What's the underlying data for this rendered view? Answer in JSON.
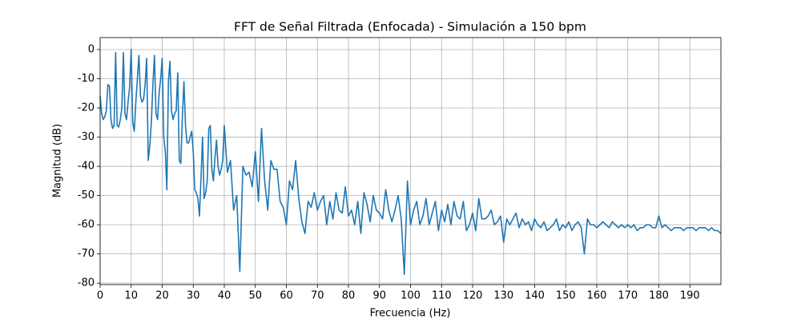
{
  "chart_data": {
    "type": "line",
    "title": "FFT de Señal Filtrada (Enfocada) - Simulación a 150 bpm",
    "xlabel": "Frecuencia (Hz)",
    "ylabel": "Magnitud (dB)",
    "color": "#1f77b4",
    "grid": true,
    "xlim": [
      0,
      200
    ],
    "ylim": [
      -80.5,
      4.1
    ],
    "xticks": [
      0,
      10,
      20,
      30,
      40,
      50,
      60,
      70,
      80,
      90,
      100,
      110,
      120,
      130,
      140,
      150,
      160,
      170,
      180,
      190
    ],
    "yticks": [
      0,
      -10,
      -20,
      -30,
      -40,
      -50,
      -60,
      -70,
      -80
    ],
    "x": [
      0,
      0.5,
      1,
      1.5,
      2,
      2.5,
      3,
      3.5,
      4,
      4.5,
      5,
      5.5,
      6,
      6.5,
      7,
      7.5,
      8,
      8.5,
      9,
      9.5,
      10,
      10.5,
      11,
      11.5,
      12,
      12.5,
      13,
      13.5,
      14,
      14.5,
      15,
      15.5,
      16,
      16.5,
      17,
      17.5,
      18,
      18.5,
      19,
      19.5,
      20,
      20.5,
      21,
      21.5,
      22,
      22.5,
      23,
      23.5,
      24,
      24.5,
      25,
      25.5,
      26,
      26.5,
      27,
      27.5,
      28,
      28.5,
      29,
      29.5,
      30,
      30.5,
      31,
      31.5,
      32,
      32.5,
      33,
      33.5,
      34,
      34.5,
      35,
      35.5,
      36,
      36.5,
      37,
      37.5,
      38,
      38.5,
      39,
      39.5,
      40,
      41,
      42,
      43,
      44,
      45,
      46,
      47,
      48,
      49,
      50,
      51,
      52,
      53,
      54,
      55,
      56,
      57,
      58,
      59,
      60,
      61,
      62,
      63,
      64,
      65,
      66,
      67,
      68,
      69,
      70,
      71,
      72,
      73,
      74,
      75,
      76,
      77,
      78,
      79,
      80,
      81,
      82,
      83,
      84,
      85,
      86,
      87,
      88,
      89,
      90,
      91,
      92,
      93,
      94,
      95,
      96,
      97,
      98,
      99,
      100,
      101,
      102,
      103,
      104,
      105,
      106,
      107,
      108,
      109,
      110,
      111,
      112,
      113,
      114,
      115,
      116,
      117,
      118,
      119,
      120,
      121,
      122,
      123,
      124,
      125,
      126,
      127,
      128,
      129,
      130,
      131,
      132,
      133,
      134,
      135,
      136,
      137,
      138,
      139,
      140,
      141,
      142,
      143,
      144,
      145,
      146,
      147,
      148,
      149,
      150,
      151,
      152,
      153,
      154,
      155,
      156,
      157,
      158,
      159,
      160,
      161,
      162,
      163,
      164,
      165,
      166,
      167,
      168,
      169,
      170,
      171,
      172,
      173,
      174,
      175,
      176,
      177,
      178,
      179,
      180,
      181,
      182,
      183,
      184,
      185,
      186,
      187,
      188,
      189,
      190,
      191,
      192,
      193,
      194,
      195,
      196,
      197,
      198,
      199,
      200
    ],
    "values": [
      -16,
      -22,
      -24,
      -23,
      -21,
      -12,
      -12.5,
      -24,
      -27,
      -26,
      -1,
      -26,
      -26.5,
      -24,
      -20,
      -1,
      -22,
      -24,
      -18,
      -13,
      0,
      -25,
      -28,
      -18,
      -10,
      -2,
      -16,
      -18,
      -17,
      -12,
      -3,
      -38,
      -33,
      -25,
      -12,
      -2,
      -22,
      -24,
      -15,
      -10,
      -3,
      -30,
      -35,
      -48,
      -11,
      -4,
      -21,
      -24,
      -22,
      -21,
      -8,
      -38,
      -39,
      -23,
      -11,
      -26,
      -32,
      -32,
      -30,
      -28,
      -35,
      -48,
      -49,
      -51,
      -57,
      -44,
      -30,
      -51,
      -49,
      -45,
      -27,
      -26,
      -41,
      -45,
      -37,
      -31,
      -40,
      -43,
      -41,
      -38,
      -26,
      -42,
      -38,
      -55,
      -50,
      -76,
      -40,
      -43,
      -42,
      -47,
      -35,
      -52,
      -27,
      -45,
      -55,
      -38,
      -41,
      -41,
      -52,
      -54,
      -60,
      -45,
      -48,
      -38,
      -51,
      -59,
      -63,
      -52,
      -54,
      -49,
      -55,
      -52,
      -50,
      -60,
      -52,
      -58,
      -49,
      -55,
      -56,
      -47,
      -57,
      -55,
      -60,
      -52,
      -63,
      -49,
      -53,
      -59,
      -50,
      -55,
      -56,
      -58,
      -48,
      -55,
      -59,
      -55,
      -50,
      -58,
      -77,
      -45,
      -60,
      -55,
      -52,
      -60,
      -57,
      -51,
      -60,
      -56,
      -52,
      -62,
      -55,
      -59,
      -53,
      -60,
      -52,
      -57,
      -58,
      -52,
      -62,
      -60,
      -56,
      -62,
      -51,
      -58,
      -58,
      -57,
      -55,
      -60,
      -59,
      -57,
      -66,
      -58,
      -60,
      -58,
      -56,
      -61,
      -58,
      -60,
      -59,
      -62,
      -58,
      -60,
      -61,
      -59,
      -62,
      -61,
      -60,
      -58,
      -62,
      -60,
      -61,
      -59,
      -62,
      -60,
      -59,
      -61,
      -70,
      -58,
      -60,
      -60,
      -61,
      -60,
      -59,
      -60,
      -61,
      -59,
      -60,
      -61,
      -60,
      -61,
      -60,
      -61,
      -60,
      -62,
      -61,
      -61,
      -60,
      -60,
      -61,
      -61,
      -57,
      -61,
      -60,
      -61,
      -62,
      -61,
      -61,
      -61,
      -62,
      -61,
      -61,
      -61,
      -62,
      -61,
      -61,
      -61,
      -62,
      -61,
      -62,
      -62,
      -63
    ]
  }
}
